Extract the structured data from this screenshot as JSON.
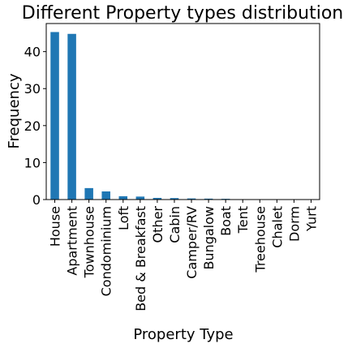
{
  "chart_data": {
    "type": "bar",
    "title": "Different Property types distribution",
    "xlabel": "Property Type",
    "ylabel": "Frequency",
    "ylim": [
      0,
      47.6
    ],
    "yticks": [
      0,
      10,
      20,
      30,
      40
    ],
    "grid": false,
    "legend": "none",
    "bar_color": "#1f77b4",
    "categories": [
      "House",
      "Apartment",
      "Townhouse",
      "Condominium",
      "Loft",
      "Bed & Breakfast",
      "Other",
      "Cabin",
      "Camper/RV",
      "Bungalow",
      "Boat",
      "Tent",
      "Treehouse",
      "Chalet",
      "Dorm",
      "Yurt"
    ],
    "values": [
      45.3,
      44.8,
      3.1,
      2.2,
      0.9,
      0.8,
      0.45,
      0.4,
      0.3,
      0.25,
      0.2,
      0.1,
      0.07,
      0.05,
      0.04,
      0.03
    ]
  }
}
